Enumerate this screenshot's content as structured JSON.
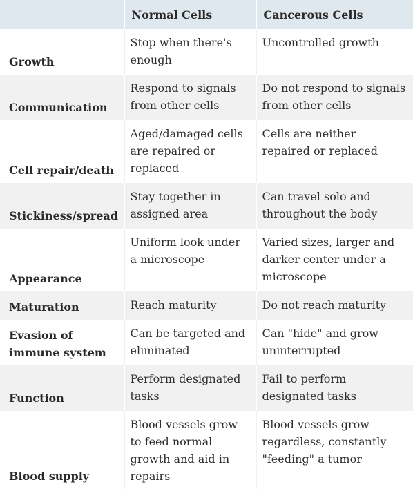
{
  "header": {
    "col0": "",
    "col1": "Normal Cells",
    "col2": "Cancerous Cells"
  },
  "rows": [
    {
      "label": "Growth",
      "normal": "Stop when there's enough",
      "cancer": " Uncontrolled growth"
    },
    {
      "label": "Communication",
      "normal": "Respond to signals from other cells",
      "cancer": "Do not respond to signals from other cells"
    },
    {
      "label": "Cell repair/death",
      "normal": "Aged/damaged cells are repaired or replaced",
      "cancer": "Cells are neither repaired or replaced"
    },
    {
      "label": "Stickiness/spread",
      "normal": " Stay together in assigned area",
      "cancer": "Can travel solo and throughout the body"
    },
    {
      "label": "Appearance",
      "normal": "Uniform look under a microscope",
      "cancer": "Varied sizes, larger and darker center under a microscope"
    },
    {
      "label": "Maturation",
      "normal": " Reach maturity",
      "cancer": " Do not reach maturity"
    },
    {
      "label": "Evasion of immune system",
      "normal": "Can be targeted and eliminated",
      "cancer": " Can \"hide\" and grow uninterrupted"
    },
    {
      "label": "Function",
      "normal": "Perform designated tasks",
      "cancer": "Fail to perform designated tasks"
    },
    {
      "label": "Blood supply",
      "normal": "Blood vessels grow to feed normal growth and aid in repairs",
      "cancer": "Blood vessels grow regardless, constantly \"feeding\" a tumor"
    }
  ]
}
